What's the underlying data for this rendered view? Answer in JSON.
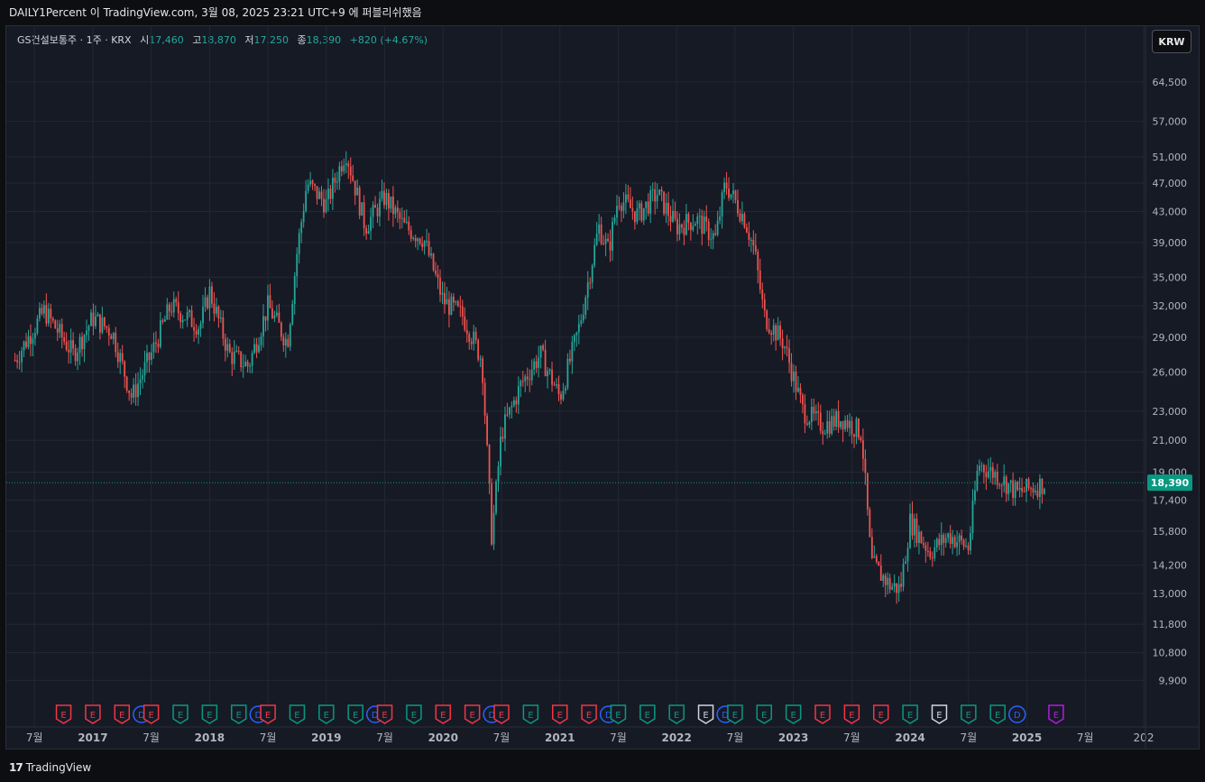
{
  "header": {
    "title": "DAILY1Percent 이 TradingView.com, 3월 08, 2025 23:21 UTC+9 에 퍼블리쉬했음"
  },
  "legend": {
    "symbol": "GS건설보통주 · 1주 · KRX",
    "open_label": "시",
    "open": "17,460",
    "high_label": "고",
    "high": "18,870",
    "low_label": "저",
    "low": "17,250",
    "close_label": "종",
    "close": "18,390",
    "change": "+820 (+4.67%)"
  },
  "currency_button": "KRW",
  "last_price_label": "18,390",
  "footer": {
    "brand": "TradingView"
  },
  "colors": {
    "up": "#26a69a",
    "down": "#ef5350",
    "bg": "#161a25",
    "grid": "#232733",
    "axis_text": "#b2b5be",
    "last_price": "#089981"
  },
  "chart_data": {
    "type": "candlestick",
    "y_scale": "log",
    "ylim": [
      8700,
      72000
    ],
    "y_ticks": [
      64500,
      57000,
      51000,
      47000,
      43000,
      39000,
      35000,
      32000,
      29000,
      26000,
      23000,
      21000,
      19000,
      17400,
      15800,
      14200,
      13000,
      11800,
      10800,
      9900
    ],
    "y_tick_labels": [
      "64,500",
      "57,000",
      "51,000",
      "47,000",
      "43,000",
      "39,000",
      "35,000",
      "32,000",
      "29,000",
      "26,000",
      "23,000",
      "21,000",
      "19,000",
      "17,400",
      "15,800",
      "14,200",
      "13,000",
      "11,800",
      "10,800",
      "9,900"
    ],
    "x_ticks": [
      "2016-07",
      "2017-01",
      "2017-07",
      "2018-01",
      "2018-07",
      "2019-01",
      "2019-07",
      "2020-01",
      "2020-07",
      "2021-01",
      "2021-07",
      "2022-01",
      "2022-07",
      "2023-01",
      "2023-07",
      "2024-01",
      "2024-07",
      "2025-01",
      "2025-07",
      "2026-01"
    ],
    "x_tick_labels": [
      "7월",
      "2017",
      "7월",
      "2018",
      "7월",
      "2019",
      "7월",
      "2020",
      "7월",
      "2021",
      "7월",
      "2022",
      "7월",
      "2023",
      "7월",
      "2024",
      "7월",
      "2025",
      "7월",
      "202"
    ],
    "last_close": 18390,
    "price_path": [
      [
        "2016-05",
        27000
      ],
      [
        "2016-08",
        31500
      ],
      [
        "2016-11",
        27500
      ],
      [
        "2017-01",
        30800
      ],
      [
        "2017-03",
        29500
      ],
      [
        "2017-05",
        24000
      ],
      [
        "2017-07",
        27500
      ],
      [
        "2017-09",
        32000
      ],
      [
        "2017-12",
        30000
      ],
      [
        "2018-01",
        33500
      ],
      [
        "2018-03",
        27500
      ],
      [
        "2018-05",
        26500
      ],
      [
        "2018-07",
        32000
      ],
      [
        "2018-09",
        28500
      ],
      [
        "2018-10",
        38000
      ],
      [
        "2018-11",
        47000
      ],
      [
        "2019-01",
        44000
      ],
      [
        "2019-03",
        52000
      ],
      [
        "2019-05",
        41000
      ],
      [
        "2019-07",
        45000
      ],
      [
        "2019-09",
        41000
      ],
      [
        "2019-11",
        39500
      ],
      [
        "2020-01",
        32500
      ],
      [
        "2020-03",
        31000
      ],
      [
        "2020-04",
        29000
      ],
      [
        "2020-05",
        27000
      ],
      [
        "2020-06",
        15500
      ],
      [
        "2020-07",
        21500
      ],
      [
        "2020-09",
        25000
      ],
      [
        "2020-11",
        27500
      ],
      [
        "2021-01",
        24000
      ],
      [
        "2021-03",
        30000
      ],
      [
        "2021-05",
        41000
      ],
      [
        "2021-06",
        38000
      ],
      [
        "2021-07",
        45000
      ],
      [
        "2021-09",
        42500
      ],
      [
        "2021-11",
        45500
      ],
      [
        "2022-01",
        41000
      ],
      [
        "2022-03",
        42000
      ],
      [
        "2022-05",
        39500
      ],
      [
        "2022-06",
        47000
      ],
      [
        "2022-08",
        42000
      ],
      [
        "2022-09",
        38000
      ],
      [
        "2022-10",
        31000
      ],
      [
        "2022-12",
        28500
      ],
      [
        "2023-02",
        23000
      ],
      [
        "2023-04",
        22000
      ],
      [
        "2023-06",
        22500
      ],
      [
        "2023-08",
        21500
      ],
      [
        "2023-09",
        14300
      ],
      [
        "2023-11",
        13300
      ],
      [
        "2023-12",
        13200
      ],
      [
        "2024-01",
        16300
      ],
      [
        "2024-03",
        14800
      ],
      [
        "2024-05",
        15600
      ],
      [
        "2024-07",
        15000
      ],
      [
        "2024-08",
        19500
      ],
      [
        "2024-10",
        18800
      ],
      [
        "2024-12",
        17800
      ],
      [
        "2025-03",
        18390
      ]
    ],
    "earnings_markers": [
      {
        "date": "2016-10",
        "type": "E",
        "color": "red"
      },
      {
        "date": "2017-01",
        "type": "E",
        "color": "red"
      },
      {
        "date": "2017-04",
        "type": "E",
        "color": "red"
      },
      {
        "date": "2017-06",
        "type": "D",
        "color": "blue"
      },
      {
        "date": "2017-07",
        "type": "E",
        "color": "red"
      },
      {
        "date": "2017-10",
        "type": "E",
        "color": "green"
      },
      {
        "date": "2018-01",
        "type": "E",
        "color": "green"
      },
      {
        "date": "2018-04",
        "type": "E",
        "color": "green"
      },
      {
        "date": "2018-06",
        "type": "D",
        "color": "blue"
      },
      {
        "date": "2018-07",
        "type": "E",
        "color": "red"
      },
      {
        "date": "2018-10",
        "type": "E",
        "color": "green"
      },
      {
        "date": "2019-01",
        "type": "E",
        "color": "green"
      },
      {
        "date": "2019-04",
        "type": "E",
        "color": "green"
      },
      {
        "date": "2019-06",
        "type": "D",
        "color": "blue"
      },
      {
        "date": "2019-07",
        "type": "E",
        "color": "red"
      },
      {
        "date": "2019-10",
        "type": "E",
        "color": "green"
      },
      {
        "date": "2020-01",
        "type": "E",
        "color": "red"
      },
      {
        "date": "2020-04",
        "type": "E",
        "color": "red"
      },
      {
        "date": "2020-06",
        "type": "D",
        "color": "blue"
      },
      {
        "date": "2020-07",
        "type": "E",
        "color": "red"
      },
      {
        "date": "2020-10",
        "type": "E",
        "color": "green"
      },
      {
        "date": "2021-01",
        "type": "E",
        "color": "red"
      },
      {
        "date": "2021-04",
        "type": "E",
        "color": "red"
      },
      {
        "date": "2021-06",
        "type": "D",
        "color": "blue"
      },
      {
        "date": "2021-07",
        "type": "E",
        "color": "green"
      },
      {
        "date": "2021-10",
        "type": "E",
        "color": "green"
      },
      {
        "date": "2022-01",
        "type": "E",
        "color": "green"
      },
      {
        "date": "2022-04",
        "type": "E",
        "color": "white"
      },
      {
        "date": "2022-06",
        "type": "D",
        "color": "blue"
      },
      {
        "date": "2022-07",
        "type": "E",
        "color": "green"
      },
      {
        "date": "2022-10",
        "type": "E",
        "color": "green"
      },
      {
        "date": "2023-01",
        "type": "E",
        "color": "green"
      },
      {
        "date": "2023-04",
        "type": "E",
        "color": "red"
      },
      {
        "date": "2023-07",
        "type": "E",
        "color": "red"
      },
      {
        "date": "2023-10",
        "type": "E",
        "color": "red"
      },
      {
        "date": "2024-01",
        "type": "E",
        "color": "green"
      },
      {
        "date": "2024-04",
        "type": "E",
        "color": "white"
      },
      {
        "date": "2024-07",
        "type": "E",
        "color": "green"
      },
      {
        "date": "2024-10",
        "type": "E",
        "color": "green"
      },
      {
        "date": "2024-12",
        "type": "D",
        "color": "blue"
      },
      {
        "date": "2025-04",
        "type": "E",
        "color": "purple"
      }
    ]
  }
}
